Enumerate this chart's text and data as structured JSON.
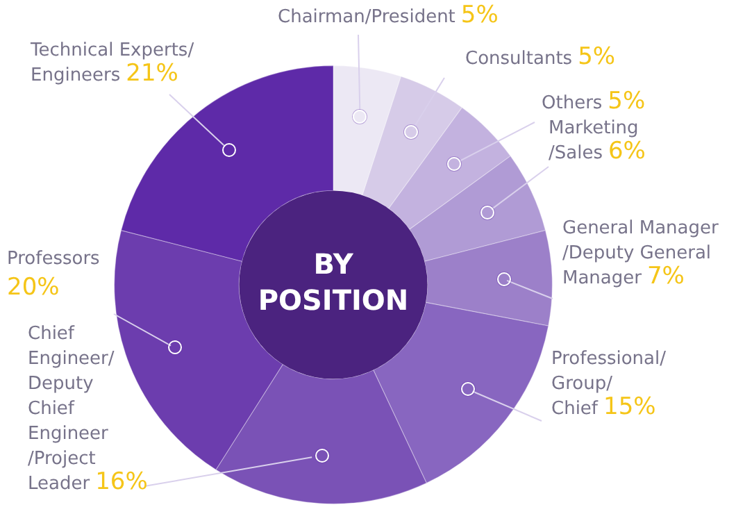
{
  "chart_data": {
    "type": "donut",
    "title": "BY POSITION",
    "categories": [
      "Chairman/President",
      "Consultants",
      "Others",
      "Marketing /Sales",
      "General Manager /Deputy General Manager",
      "Professional/ Group/ Chief",
      "Chief Engineer/ Deputy Chief Engineer /Project Leader",
      "Professors",
      "Technical Experts/ Engineers"
    ],
    "values": [
      5,
      5,
      5,
      6,
      7,
      15,
      16,
      20,
      21
    ],
    "value_labels": [
      "5%",
      "5%",
      "5%",
      "6%",
      "7%",
      "15%",
      "16%",
      "20%",
      "21%"
    ],
    "colors": [
      "#ece8f4",
      "#d6cbe8",
      "#c3b2df",
      "#b09bd5",
      "#9c80c9",
      "#8866c0",
      "#7a52b6",
      "#6c3dae",
      "#5e2aa8"
    ],
    "legend": false
  }
}
